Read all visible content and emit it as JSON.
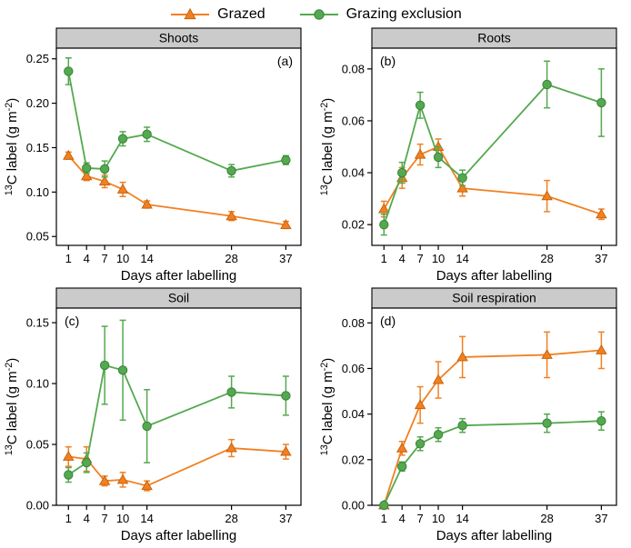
{
  "colors": {
    "grazed": "#F28022",
    "grazed_edge": "#C4650D",
    "exclusion": "#54A94F",
    "exclusion_edge": "#37833B",
    "title_bar": "#CBCBCB",
    "axis": "#000000"
  },
  "legend": {
    "items": [
      {
        "label": "Grazed",
        "series": "grazed",
        "marker": "triangle"
      },
      {
        "label": "Grazing exclusion",
        "series": "exclusion",
        "marker": "circle"
      }
    ]
  },
  "chart_data": [
    {
      "type": "line",
      "panel_letter": "(a)",
      "letter_pos": "right",
      "title": "Shoots",
      "xlabel": "Days after labelling",
      "ylabel": "¹³C label (g m⁻²)",
      "x": [
        1,
        4,
        7,
        10,
        14,
        28,
        37
      ],
      "xticks": [
        1,
        4,
        7,
        10,
        14,
        28,
        37
      ],
      "xlim": [
        -1,
        39.5
      ],
      "ylim": [
        0.04,
        0.262
      ],
      "yticks": [
        0.05,
        0.1,
        0.15,
        0.2,
        0.25
      ],
      "grid": false,
      "error_bars": true,
      "series": [
        {
          "name": "Grazed",
          "marker": "triangle",
          "color_key": "grazed",
          "values": [
            0.141,
            0.118,
            0.112,
            0.103,
            0.086,
            0.073,
            0.063
          ],
          "errors": [
            0.004,
            0.005,
            0.007,
            0.008,
            0.004,
            0.005,
            0.004
          ]
        },
        {
          "name": "Grazing exclusion",
          "marker": "circle",
          "color_key": "exclusion",
          "values": [
            0.236,
            0.127,
            0.126,
            0.16,
            0.165,
            0.124,
            0.136
          ],
          "errors": [
            0.015,
            0.006,
            0.009,
            0.008,
            0.008,
            0.007,
            0.005
          ]
        }
      ]
    },
    {
      "type": "line",
      "panel_letter": "(b)",
      "letter_pos": "left",
      "title": "Roots",
      "xlabel": "Days after labelling",
      "ylabel": "¹³C label (g m⁻²)",
      "x": [
        1,
        4,
        7,
        10,
        14,
        28,
        37
      ],
      "xticks": [
        1,
        4,
        7,
        10,
        14,
        28,
        37
      ],
      "xlim": [
        -1,
        39.5
      ],
      "ylim": [
        0.012,
        0.088
      ],
      "yticks": [
        0.02,
        0.04,
        0.06,
        0.08
      ],
      "grid": false,
      "error_bars": true,
      "series": [
        {
          "name": "Grazed",
          "marker": "triangle",
          "color_key": "grazed",
          "values": [
            0.026,
            0.038,
            0.047,
            0.05,
            0.034,
            0.031,
            0.024
          ],
          "errors": [
            0.003,
            0.004,
            0.004,
            0.003,
            0.003,
            0.006,
            0.002
          ]
        },
        {
          "name": "Grazing exclusion",
          "marker": "circle",
          "color_key": "exclusion",
          "values": [
            0.02,
            0.04,
            0.066,
            0.046,
            0.038,
            0.074,
            0.067
          ],
          "errors": [
            0.004,
            0.004,
            0.005,
            0.004,
            0.003,
            0.009,
            0.013
          ]
        }
      ]
    },
    {
      "type": "line",
      "panel_letter": "(c)",
      "letter_pos": "left",
      "title": "Soil",
      "xlabel": "Days after labelling",
      "ylabel": "¹³C label (g m⁻²)",
      "x": [
        1,
        4,
        7,
        10,
        14,
        28,
        37
      ],
      "xticks": [
        1,
        4,
        7,
        10,
        14,
        28,
        37
      ],
      "xlim": [
        -1,
        39.5
      ],
      "ylim": [
        0,
        0.162
      ],
      "yticks": [
        0.0,
        0.05,
        0.1,
        0.15
      ],
      "grid": false,
      "error_bars": true,
      "series": [
        {
          "name": "Grazed",
          "marker": "triangle",
          "color_key": "grazed",
          "values": [
            0.04,
            0.038,
            0.02,
            0.021,
            0.016,
            0.047,
            0.044
          ],
          "errors": [
            0.008,
            0.01,
            0.004,
            0.006,
            0.004,
            0.007,
            0.006
          ]
        },
        {
          "name": "Grazing exclusion",
          "marker": "circle",
          "color_key": "exclusion",
          "values": [
            0.025,
            0.035,
            0.115,
            0.111,
            0.065,
            0.093,
            0.09
          ],
          "errors": [
            0.006,
            0.008,
            0.032,
            0.041,
            0.03,
            0.013,
            0.016
          ]
        }
      ]
    },
    {
      "type": "line",
      "panel_letter": "(d)",
      "letter_pos": "left",
      "title": "Soil respiration",
      "xlabel": "Days after labelling",
      "ylabel": "¹³C label (g m⁻²)",
      "x": [
        1,
        4,
        7,
        10,
        14,
        28,
        37
      ],
      "xticks": [
        1,
        4,
        7,
        10,
        14,
        28,
        37
      ],
      "xlim": [
        -1,
        39.5
      ],
      "ylim": [
        0,
        0.0865
      ],
      "yticks": [
        0.0,
        0.02,
        0.04,
        0.06,
        0.08
      ],
      "grid": false,
      "error_bars": true,
      "series": [
        {
          "name": "Grazed",
          "marker": "triangle",
          "color_key": "grazed",
          "values": [
            0.0,
            0.025,
            0.044,
            0.055,
            0.065,
            0.066,
            0.068
          ],
          "errors": [
            0.0,
            0.003,
            0.008,
            0.008,
            0.009,
            0.01,
            0.008
          ]
        },
        {
          "name": "Grazing exclusion",
          "marker": "circle",
          "color_key": "exclusion",
          "values": [
            0.0,
            0.017,
            0.027,
            0.031,
            0.035,
            0.036,
            0.037
          ],
          "errors": [
            0.0,
            0.002,
            0.003,
            0.003,
            0.003,
            0.004,
            0.004
          ]
        }
      ]
    }
  ]
}
